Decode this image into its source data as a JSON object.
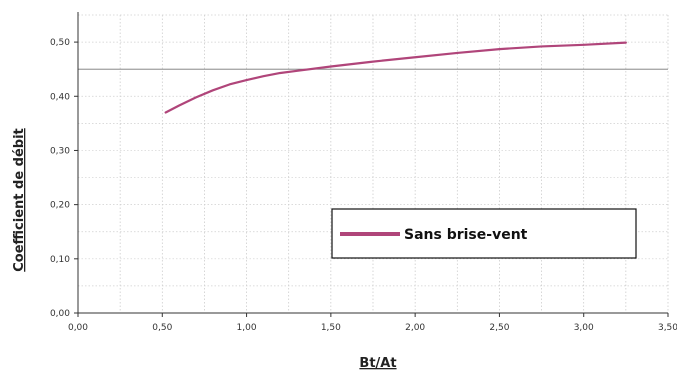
{
  "chart_data": {
    "type": "line",
    "xlabel": "Bt/At",
    "ylabel": "Coefficient de débit",
    "xlim": [
      0,
      3.5
    ],
    "ylim": [
      0,
      0.55
    ],
    "x_ticks": [
      "0,00",
      "0,50",
      "1,00",
      "1,50",
      "2,00",
      "2,50",
      "3,00",
      "3,50"
    ],
    "y_ticks": [
      "0,00",
      "0,10",
      "0,20",
      "0,30",
      "0,40",
      "0,50"
    ],
    "grid": true,
    "legend_position": "bottom-right",
    "series": [
      {
        "name": "Sans brise-vent",
        "color": "#b0457a",
        "x": [
          0.52,
          0.6,
          0.7,
          0.8,
          0.9,
          1.0,
          1.1,
          1.2,
          1.3,
          1.5,
          1.75,
          2.0,
          2.25,
          2.5,
          2.75,
          3.0,
          3.25
        ],
        "y": [
          0.37,
          0.383,
          0.398,
          0.411,
          0.422,
          0.43,
          0.437,
          0.443,
          0.447,
          0.455,
          0.464,
          0.472,
          0.48,
          0.487,
          0.492,
          0.495,
          0.499
        ]
      }
    ]
  }
}
